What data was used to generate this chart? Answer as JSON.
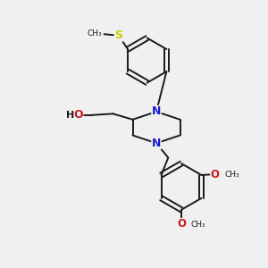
{
  "bg_color": "#f0f0f0",
  "bond_color": "#1a1a1a",
  "N_color": "#1a1acc",
  "O_color": "#cc1a1a",
  "S_color": "#cccc00",
  "lw": 1.4,
  "figsize": [
    3.0,
    3.0
  ],
  "dpi": 100,
  "xlim": [
    0,
    10
  ],
  "ylim": [
    0,
    10
  ]
}
